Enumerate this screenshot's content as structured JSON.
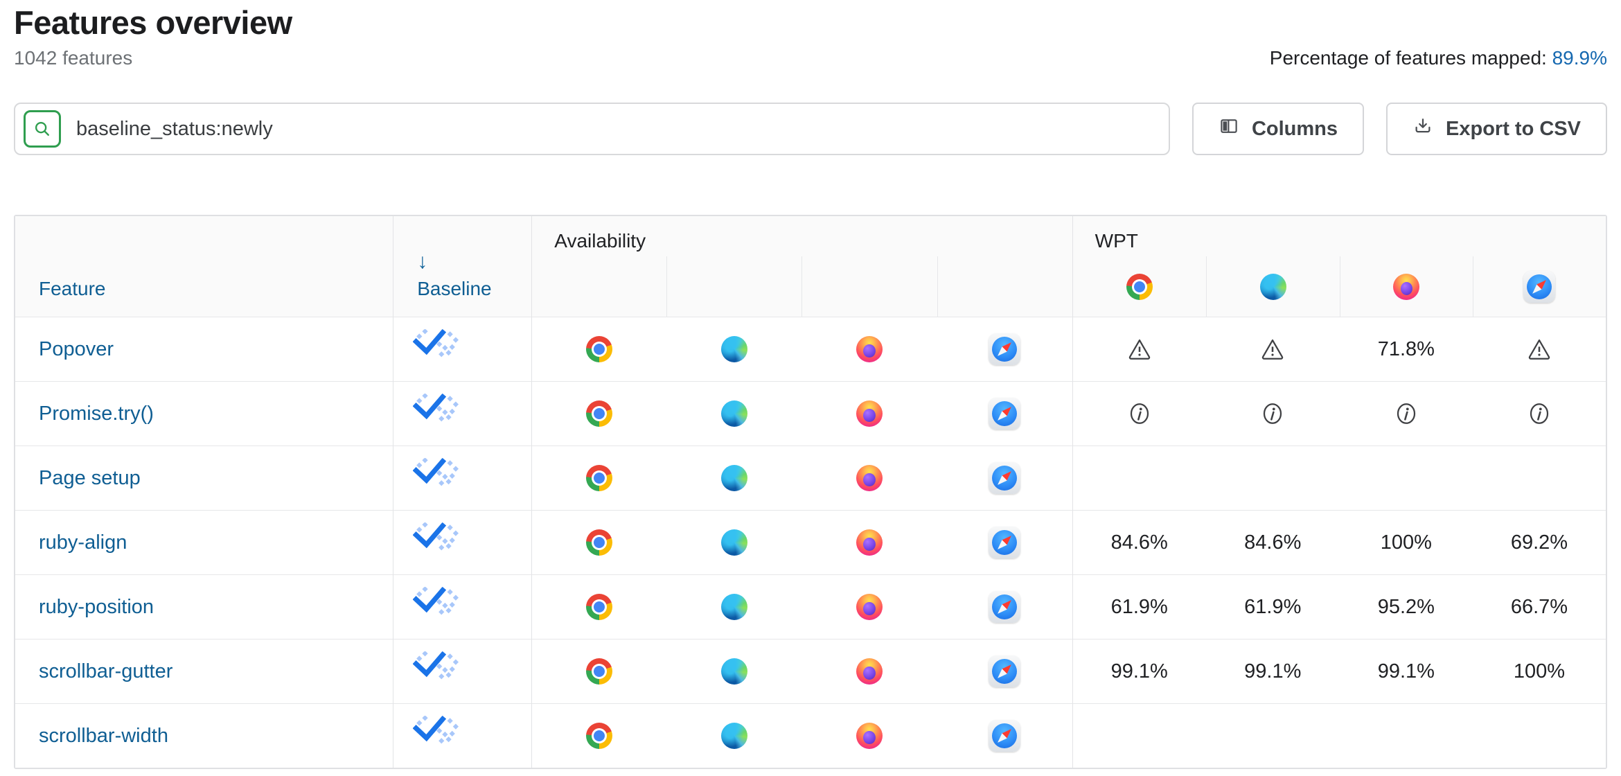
{
  "page": {
    "title": "Features overview",
    "feature_count": "1042 features",
    "mapped_label": "Percentage of features mapped:",
    "mapped_value": "89.9%"
  },
  "toolbar": {
    "search_value": "baseline_status:newly",
    "columns_label": "Columns",
    "export_label": "Export to CSV"
  },
  "table": {
    "headers": {
      "feature": "Feature",
      "baseline": "Baseline",
      "baseline_sort_arrow": "↓",
      "availability": "Availability",
      "wpt": "WPT"
    },
    "wpt_header_browsers": [
      "chrome",
      "edge",
      "firefox",
      "safari"
    ],
    "rows": [
      {
        "feature": "Popover",
        "baseline": "newly",
        "availability": [
          "chrome",
          "edge",
          "firefox",
          "safari"
        ],
        "wpt": [
          {
            "type": "warning"
          },
          {
            "type": "warning"
          },
          {
            "type": "value",
            "value": "71.8%"
          },
          {
            "type": "warning"
          }
        ]
      },
      {
        "feature": "Promise.try()",
        "baseline": "newly",
        "availability": [
          "chrome",
          "edge",
          "firefox",
          "safari"
        ],
        "wpt": [
          {
            "type": "info"
          },
          {
            "type": "info"
          },
          {
            "type": "info"
          },
          {
            "type": "info"
          }
        ]
      },
      {
        "feature": "Page setup",
        "baseline": "newly",
        "availability": [
          "chrome",
          "edge",
          "firefox",
          "safari"
        ],
        "wpt": [
          {
            "type": "empty"
          },
          {
            "type": "empty"
          },
          {
            "type": "empty"
          },
          {
            "type": "empty"
          }
        ]
      },
      {
        "feature": "ruby-align",
        "baseline": "newly",
        "availability": [
          "chrome",
          "edge",
          "firefox",
          "safari"
        ],
        "wpt": [
          {
            "type": "value",
            "value": "84.6%"
          },
          {
            "type": "value",
            "value": "84.6%"
          },
          {
            "type": "value",
            "value": "100%"
          },
          {
            "type": "value",
            "value": "69.2%"
          }
        ]
      },
      {
        "feature": "ruby-position",
        "baseline": "newly",
        "availability": [
          "chrome",
          "edge",
          "firefox",
          "safari"
        ],
        "wpt": [
          {
            "type": "value",
            "value": "61.9%"
          },
          {
            "type": "value",
            "value": "61.9%"
          },
          {
            "type": "value",
            "value": "95.2%"
          },
          {
            "type": "value",
            "value": "66.7%"
          }
        ]
      },
      {
        "feature": "scrollbar-gutter",
        "baseline": "newly",
        "availability": [
          "chrome",
          "edge",
          "firefox",
          "safari"
        ],
        "wpt": [
          {
            "type": "value",
            "value": "99.1%"
          },
          {
            "type": "value",
            "value": "99.1%"
          },
          {
            "type": "value",
            "value": "99.1%"
          },
          {
            "type": "value",
            "value": "100%"
          }
        ]
      },
      {
        "feature": "scrollbar-width",
        "baseline": "newly",
        "availability": [
          "chrome",
          "edge",
          "firefox",
          "safari"
        ],
        "wpt": [
          {
            "type": "empty"
          },
          {
            "type": "empty"
          },
          {
            "type": "empty"
          },
          {
            "type": "empty"
          }
        ]
      }
    ]
  },
  "colors": {
    "link_blue": "#0f5e93",
    "mapped_value_blue": "#1568b0",
    "baseline_check_blue": "#1a73e8",
    "baseline_sparkle_blue": "#a8c7fa",
    "search_icon_green": "#2f9e4f",
    "header_bg": "#fafafa",
    "table_border": "#e2e3e6"
  }
}
